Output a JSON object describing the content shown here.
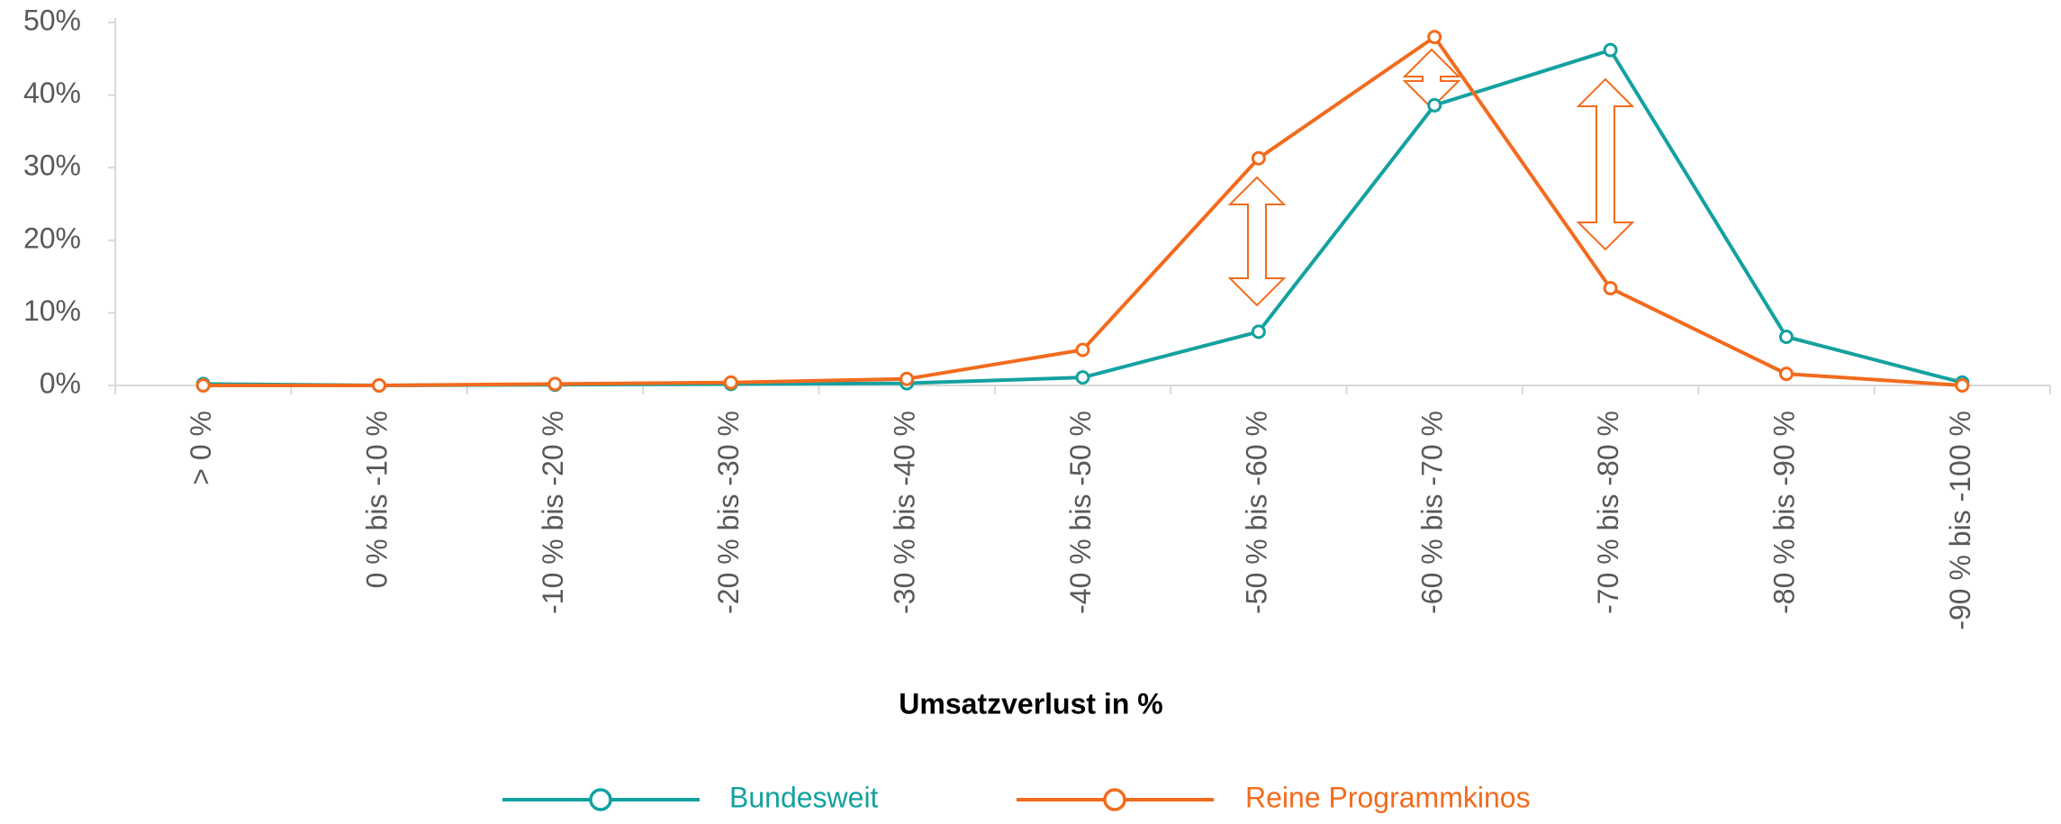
{
  "chart_data": {
    "type": "line",
    "x_label": "Umsatzverlust  in %",
    "categories": [
      "> 0 %",
      "0 % bis -10 %",
      "-10 % bis -20 %",
      "-20 % bis -30 %",
      "-30 % bis -40 %",
      "-40 % bis -50 %",
      "-50 % bis -60 %",
      "-60 % bis -70 %",
      "-70 % bis -80 %",
      "-80 % bis -90 %",
      "-90 % bis -100 %"
    ],
    "series": [
      {
        "name": "Bundesweit",
        "color": "#13a1a0",
        "values": [
          0.2,
          0,
          0.1,
          0.2,
          0.3,
          1.1,
          7.4,
          38.6,
          46.2,
          6.7,
          0.4
        ]
      },
      {
        "name": "Reine Programmkinos",
        "color": "#f26b1d",
        "values": [
          0,
          0,
          0.2,
          0.4,
          0.9,
          4.9,
          31.3,
          48.0,
          13.4,
          1.6,
          0
        ]
      }
    ],
    "ylim": [
      0,
      50
    ],
    "yticks": [
      {
        "value": 0,
        "label": "0%"
      },
      {
        "value": 10,
        "label": "10%"
      },
      {
        "value": 20,
        "label": "20%"
      },
      {
        "value": 30,
        "label": "30%"
      },
      {
        "value": 40,
        "label": "40%"
      },
      {
        "value": 50,
        "label": "50%"
      }
    ],
    "legend": "bottom"
  }
}
